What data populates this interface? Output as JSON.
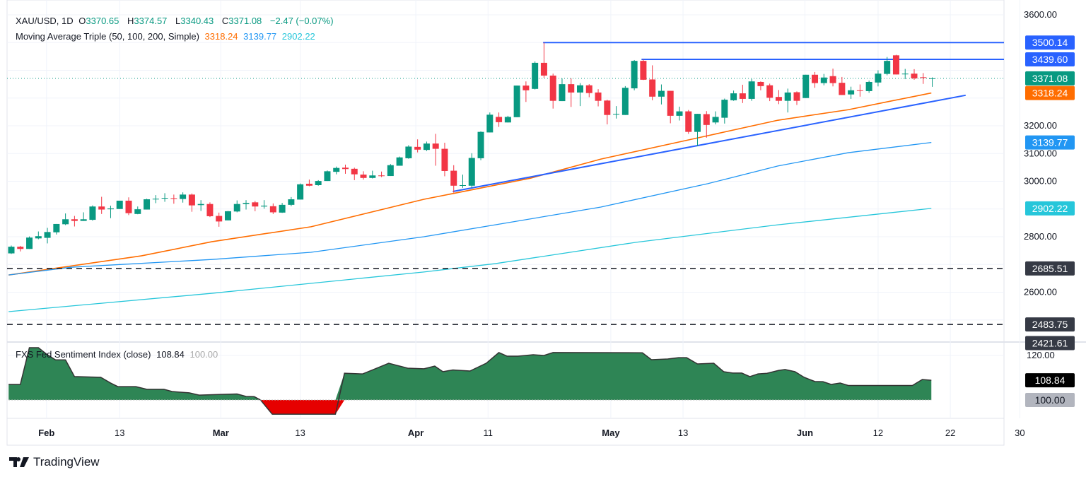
{
  "header": {
    "symbol": "XAU/USD, 1D",
    "open_label": "O",
    "open": "3370.65",
    "high_label": "H",
    "high": "3374.57",
    "low_label": "L",
    "low": "3340.43",
    "close_label": "C",
    "close": "3371.08",
    "change": "−2.47 (−0.07%)"
  },
  "ma_legend": {
    "title": "Moving Average Triple (50, 100, 200, Simple)",
    "ma50": "3318.24",
    "ma100": "3139.77",
    "ma200": "2902.22"
  },
  "indicator_legend": {
    "title": "FXS Fed Sentiment Index (close)",
    "value": "108.84",
    "baseline": "100.00"
  },
  "branding": {
    "name": "TradingView"
  },
  "colors": {
    "up": "#089981",
    "down": "#F23645",
    "ma50": "#FF6D00",
    "ma100": "#2196F3",
    "ma200": "#26C6DA",
    "trendline": "#2962FF",
    "sentiment_pos": "#2E8555",
    "sentiment_neg": "#E60000"
  },
  "chart_data": [
    {
      "type": "candlestick",
      "title": "XAU/USD, 1D",
      "ylim": [
        2421.61,
        3600
      ],
      "y_tick_labels": [
        "3600.00",
        "3200.00",
        "3100.00",
        "3000.00",
        "2800.00",
        "2600.00"
      ],
      "y_tick_values": [
        3600,
        3200,
        3100,
        3000,
        2800,
        2600
      ],
      "x_tick_labels": [
        "Feb",
        "13",
        "Mar",
        "13",
        "Apr",
        "11",
        "May",
        "13",
        "Jun",
        "12",
        "22",
        "30"
      ],
      "x_tick_bar_index": [
        3.9,
        12,
        23.2,
        32,
        44.8,
        52.8,
        66.4,
        74.4,
        87.9,
        96,
        104,
        111.7
      ],
      "x_tick_bold": [
        true,
        false,
        true,
        false,
        true,
        false,
        true,
        false,
        true,
        false,
        false,
        false
      ],
      "bar_count_visible": 113,
      "ohlc": [
        [
          2740,
          2768,
          2738,
          2764
        ],
        [
          2764,
          2767,
          2747,
          2756
        ],
        [
          2756,
          2801,
          2756,
          2797
        ],
        [
          2794,
          2819,
          2791,
          2802
        ],
        [
          2796,
          2832,
          2776,
          2817
        ],
        [
          2816,
          2846,
          2808,
          2846
        ],
        [
          2845,
          2884,
          2842,
          2863
        ],
        [
          2863,
          2875,
          2837,
          2857
        ],
        [
          2857,
          2888,
          2857,
          2863
        ],
        [
          2861,
          2913,
          2858,
          2909
        ],
        [
          2909,
          2944,
          2882,
          2898
        ],
        [
          2899,
          2912,
          2867,
          2902
        ],
        [
          2900,
          2930,
          2900,
          2930
        ],
        [
          2930,
          2942,
          2878,
          2885
        ],
        [
          2882,
          2909,
          2881,
          2899
        ],
        [
          2898,
          2937,
          2898,
          2935
        ],
        [
          2936,
          2950,
          2921,
          2937
        ],
        [
          2938,
          2957,
          2926,
          2940
        ],
        [
          2939,
          2952,
          2919,
          2937
        ],
        [
          2936,
          2960,
          2923,
          2952
        ],
        [
          2952,
          2956,
          2890,
          2913
        ],
        [
          2914,
          2932,
          2893,
          2918
        ],
        [
          2918,
          2924,
          2871,
          2874
        ],
        [
          2875,
          2887,
          2836,
          2855
        ],
        [
          2859,
          2893,
          2859,
          2892
        ],
        [
          2891,
          2931,
          2888,
          2918
        ],
        [
          2918,
          2932,
          2898,
          2922
        ],
        [
          2924,
          2929,
          2892,
          2909
        ],
        [
          2909,
          2932,
          2901,
          2912
        ],
        [
          2910,
          2920,
          2882,
          2888
        ],
        [
          2887,
          2922,
          2886,
          2915
        ],
        [
          2915,
          2943,
          2910,
          2935
        ],
        [
          2934,
          2992,
          2934,
          2989
        ],
        [
          2991,
          3006,
          2982,
          2984
        ],
        [
          2986,
          3004,
          2984,
          3001
        ],
        [
          3001,
          3039,
          3001,
          3036
        ],
        [
          3034,
          3053,
          3025,
          3048
        ],
        [
          3049,
          3060,
          3027,
          3044
        ],
        [
          3045,
          3049,
          3004,
          3025
        ],
        [
          3024,
          3036,
          3006,
          3012
        ],
        [
          3012,
          3038,
          3010,
          3021
        ],
        [
          3021,
          3035,
          3015,
          3019
        ],
        [
          3019,
          3062,
          3019,
          3058
        ],
        [
          3056,
          3089,
          3056,
          3086
        ],
        [
          3083,
          3130,
          3081,
          3125
        ],
        [
          3124,
          3151,
          3104,
          3114
        ],
        [
          3113,
          3143,
          3109,
          3136
        ],
        [
          3136,
          3171,
          3056,
          3117
        ],
        [
          3117,
          3139,
          3018,
          3037
        ],
        [
          3038,
          3058,
          2959,
          2984
        ],
        [
          2984,
          3024,
          2976,
          2986
        ],
        [
          2984,
          3101,
          2976,
          3084
        ],
        [
          3083,
          3180,
          3076,
          3178
        ],
        [
          3176,
          3248,
          3176,
          3240
        ],
        [
          3232,
          3248,
          3196,
          3213
        ],
        [
          3212,
          3236,
          3212,
          3232
        ],
        [
          3231,
          3345,
          3231,
          3345
        ],
        [
          3345,
          3360,
          3286,
          3328
        ],
        [
          3333,
          3432,
          3331,
          3427
        ],
        [
          3427,
          3500.14,
          3373,
          3381
        ],
        [
          3381,
          3388,
          3262,
          3290
        ],
        [
          3289,
          3371,
          3289,
          3350
        ],
        [
          3350,
          3371,
          3268,
          3320
        ],
        [
          3320,
          3354,
          3271,
          3346
        ],
        [
          3346,
          3350,
          3303,
          3318
        ],
        [
          3320,
          3332,
          3270,
          3290
        ],
        [
          3291,
          3294,
          3205,
          3239
        ],
        [
          3242,
          3271,
          3226,
          3243
        ],
        [
          3239,
          3343,
          3239,
          3337
        ],
        [
          3335,
          3437,
          3328,
          3434
        ],
        [
          3434,
          3439.6,
          3365,
          3366
        ],
        [
          3367,
          3418,
          3292,
          3305
        ],
        [
          3305,
          3349,
          3277,
          3326
        ],
        [
          3326,
          3326,
          3209,
          3236
        ],
        [
          3236,
          3269,
          3219,
          3252
        ],
        [
          3252,
          3257,
          3171,
          3178
        ],
        [
          3178,
          3243,
          3127,
          3243
        ],
        [
          3242,
          3253,
          3157,
          3203
        ],
        [
          3212,
          3252,
          3205,
          3232
        ],
        [
          3229,
          3298,
          3208,
          3294
        ],
        [
          3292,
          3327,
          3290,
          3317
        ],
        [
          3317,
          3348,
          3282,
          3297
        ],
        [
          3297,
          3369,
          3290,
          3360
        ],
        [
          3358,
          3360,
          3328,
          3343
        ],
        [
          3346,
          3352,
          3289,
          3301
        ],
        [
          3304,
          3329,
          3278,
          3290
        ],
        [
          3290,
          3334,
          3248,
          3320
        ],
        [
          3321,
          3324,
          3275,
          3290
        ],
        [
          3300,
          3384,
          3300,
          3384
        ],
        [
          3384,
          3394,
          3337,
          3354
        ],
        [
          3354,
          3387,
          3346,
          3374
        ],
        [
          3379,
          3406,
          3342,
          3354
        ],
        [
          3355,
          3376,
          3311,
          3311
        ],
        [
          3313,
          3341,
          3297,
          3328
        ],
        [
          3328,
          3349,
          3305,
          3326
        ],
        [
          3325,
          3363,
          3319,
          3358
        ],
        [
          3356,
          3400,
          3342,
          3388
        ],
        [
          3387,
          3448,
          3382,
          3434
        ],
        [
          3454,
          3456,
          3385,
          3385
        ],
        [
          3386,
          3405,
          3368,
          3388
        ],
        [
          3388,
          3404,
          3366,
          3371
        ],
        [
          3375,
          3390,
          3351,
          3373.55
        ],
        [
          3370.65,
          3374.57,
          3340.43,
          3371.08
        ]
      ],
      "moving_averages": [
        {
          "name": "SMA 50",
          "last": 3318.24,
          "points": [
            [
              -0.3,
              2662
            ],
            [
              14.4,
              2731
            ],
            [
              22.2,
              2782
            ],
            [
              33.2,
              2836
            ],
            [
              45.7,
              2935
            ],
            [
              57.5,
              3011
            ],
            [
              65.3,
              3080
            ],
            [
              77.1,
              3164
            ],
            [
              84.9,
              3220
            ],
            [
              92.7,
              3258
            ],
            [
              97.4,
              3289
            ],
            [
              101.9,
              3318.24
            ]
          ]
        },
        {
          "name": "SMA 100",
          "last": 3139.77,
          "points": [
            [
              -0.3,
              2662
            ],
            [
              6.6,
              2690
            ],
            [
              22.2,
              2718
            ],
            [
              33.2,
              2744
            ],
            [
              45.7,
              2800
            ],
            [
              53.6,
              2843
            ],
            [
              65.3,
              2907
            ],
            [
              77.1,
              2991
            ],
            [
              84.9,
              3055
            ],
            [
              92.7,
              3103
            ],
            [
              101.9,
              3139.77
            ]
          ]
        },
        {
          "name": "SMA 200",
          "last": 2902.22,
          "points": [
            [
              -0.3,
              2530
            ],
            [
              22.2,
              2596
            ],
            [
              45.7,
              2673
            ],
            [
              53.6,
              2703
            ],
            [
              69.2,
              2780
            ],
            [
              84.9,
              2843
            ],
            [
              101.9,
              2902.22
            ]
          ]
        }
      ],
      "horizontal_levels": [
        {
          "value": 3500.14,
          "label": "3500.14",
          "from_bar": 58.9,
          "style": "solid"
        },
        {
          "value": 3439.6,
          "label": "3439.60",
          "from_bar": 69.8,
          "style": "solid"
        },
        {
          "value": 2685.51,
          "label": "2685.51",
          "from_bar": -1,
          "style": "dashed"
        },
        {
          "value": 2483.75,
          "label": "2483.75",
          "from_bar": -1,
          "style": "dashed"
        }
      ],
      "last_price_label": "3371.08",
      "ma50_label": "3318.24",
      "ma100_label": "3139.77",
      "ma200_label": "2902.22",
      "partial_label": "2421.61",
      "trendline": {
        "from": [
          48.9,
          2963
        ],
        "to": [
          105.7,
          3310
        ]
      }
    },
    {
      "type": "area",
      "title": "FXS Fed Sentiment Index (close)",
      "ylim": [
        92.5,
        124
      ],
      "baseline": 100,
      "y_tick_labels": [
        "120.00"
      ],
      "y_tick_values": [
        120
      ],
      "last_label": "108.84",
      "baseline_label": "100.00",
      "points": [
        [
          -0.3,
          107
        ],
        [
          1,
          107
        ],
        [
          2,
          123.5
        ],
        [
          3,
          123.5
        ],
        [
          4,
          120.3
        ],
        [
          4.9,
          118
        ],
        [
          6,
          118
        ],
        [
          7,
          110.5
        ],
        [
          9.9,
          110.2
        ],
        [
          11,
          107.6
        ],
        [
          11.8,
          106
        ],
        [
          13.8,
          106
        ],
        [
          15,
          104.8
        ],
        [
          16.9,
          104.8
        ],
        [
          17.8,
          103.8
        ],
        [
          19.7,
          103.2
        ],
        [
          20.8,
          102.2
        ],
        [
          23.2,
          102.5
        ],
        [
          25,
          102.7
        ],
        [
          26,
          101.6
        ],
        [
          26.9,
          101.5
        ],
        [
          27.6,
          100
        ],
        [
          28.9,
          93.6
        ],
        [
          35.9,
          93.6
        ],
        [
          36.9,
          112
        ],
        [
          38.9,
          111.7
        ],
        [
          40.3,
          114
        ],
        [
          41.8,
          116.5
        ],
        [
          43.9,
          114.3
        ],
        [
          45.7,
          114
        ],
        [
          46.9,
          115.2
        ],
        [
          47.8,
          112.7
        ],
        [
          48.9,
          113.5
        ],
        [
          50.8,
          113
        ],
        [
          52.6,
          116.5
        ],
        [
          54,
          121.3
        ],
        [
          54.9,
          119.7
        ],
        [
          56.1,
          119.7
        ],
        [
          57.8,
          120.3
        ],
        [
          59,
          120
        ],
        [
          60,
          121.3
        ],
        [
          69.9,
          121.2
        ],
        [
          70.9,
          118.1
        ],
        [
          72.7,
          118.4
        ],
        [
          73.9,
          119
        ],
        [
          74.8,
          119
        ],
        [
          76,
          116.2
        ],
        [
          77.8,
          116.5
        ],
        [
          78.9,
          112.7
        ],
        [
          79.9,
          112.1
        ],
        [
          80.9,
          112.1
        ],
        [
          81.8,
          110.5
        ],
        [
          82.7,
          111.7
        ],
        [
          83.7,
          112
        ],
        [
          85,
          113.3
        ],
        [
          85.7,
          113.7
        ],
        [
          86.8,
          112.7
        ],
        [
          87.8,
          110.2
        ],
        [
          89,
          108.3
        ],
        [
          89.9,
          108.2
        ],
        [
          90.8,
          107
        ],
        [
          91.8,
          107.6
        ],
        [
          92.7,
          106.5
        ],
        [
          99.8,
          106.5
        ],
        [
          100.9,
          109.2
        ],
        [
          101.9,
          108.84
        ]
      ]
    }
  ]
}
